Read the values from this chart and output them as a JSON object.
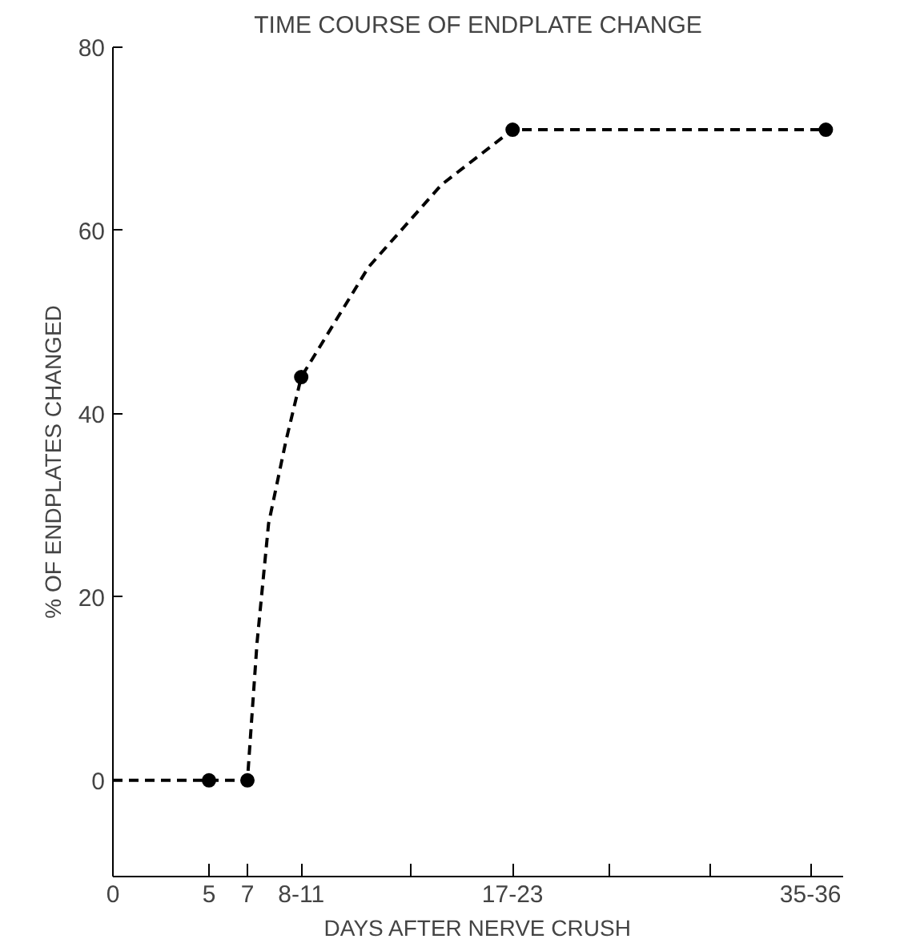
{
  "chart_data": {
    "type": "line",
    "title": "TIME COURSE OF ENDPLATE CHANGE",
    "xlabel": "DAYS AFTER NERVE CRUSH",
    "ylabel": "% OF ENDPLATES CHANGED",
    "xlim": [
      0,
      38
    ],
    "ylim": [
      -10.5,
      80
    ],
    "xticks": [
      0,
      5,
      7,
      {
        "value": 9.8,
        "label": "8-11"
      },
      {
        "value": 15.5,
        "label": null
      },
      {
        "value": 20.8,
        "label": "17-23"
      },
      {
        "value": 25.8,
        "label": null
      },
      {
        "value": 31.1,
        "label": null
      },
      {
        "value": 36.3,
        "label": "35-36"
      }
    ],
    "yticks": [
      0,
      20,
      40,
      60,
      80
    ],
    "grid": false,
    "series": [
      {
        "color": "#000000",
        "line_style": "dashed",
        "marker": "none",
        "x": [
          0,
          5,
          7,
          7.5,
          8.1,
          9,
          9.8,
          13.3,
          17.1,
          20.8,
          37.1
        ],
        "values": [
          0,
          0,
          0,
          15,
          28,
          37,
          44,
          56,
          65,
          71,
          71
        ]
      },
      {
        "type": "scatter",
        "color": "#000000",
        "marker": "circle",
        "x": [
          5,
          7,
          9.8,
          20.8,
          37.1
        ],
        "values": [
          0,
          0,
          44,
          71,
          71
        ]
      }
    ]
  }
}
